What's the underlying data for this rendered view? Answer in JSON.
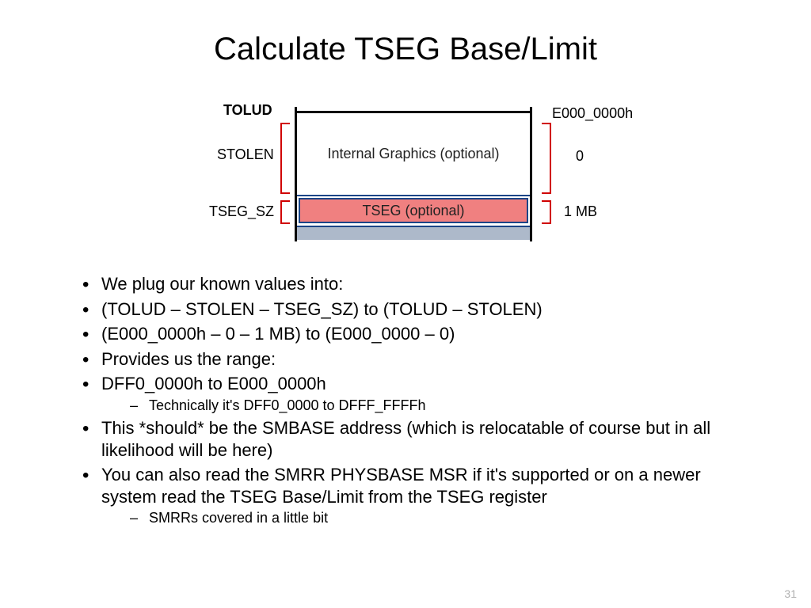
{
  "title": "Calculate TSEG Base/Limit",
  "diagram": {
    "colors": {
      "border": "#000000",
      "frame": "#1c4587",
      "tseg_fill": "#f08080",
      "bottom_fill": "#adb9ca",
      "bracket": "#d00000",
      "text": "#000000"
    },
    "left_labels": {
      "tolud": "TOLUD",
      "stolen": "STOLEN",
      "tseg_sz": "TSEG_SZ"
    },
    "right_labels": {
      "top": "E000_0000h",
      "mid": "0",
      "bot": "1 MB"
    },
    "regions": {
      "gfx": "Internal Graphics (optional)",
      "tseg": "TSEG (optional)"
    }
  },
  "bullets": [
    {
      "text": "We plug our known values into:"
    },
    {
      "text": "(TOLUD – STOLEN – TSEG_SZ) to  (TOLUD – STOLEN)"
    },
    {
      "text": "(E000_0000h – 0 – 1 MB) to (E000_0000 – 0)"
    },
    {
      "text": "Provides us the range:"
    },
    {
      "text": "DFF0_0000h to E000_0000h",
      "sub": [
        "Technically it's DFF0_0000 to DFFF_FFFFh"
      ]
    },
    {
      "text": "This *should* be the SMBASE address (which is relocatable of course but in all likelihood will be here)"
    },
    {
      "text": "You can also read the SMRR PHYSBASE MSR if it's supported or on a newer system read the TSEG Base/Limit from the TSEG register",
      "sub": [
        "SMRRs covered in a little bit"
      ]
    }
  ],
  "page_number": "31"
}
